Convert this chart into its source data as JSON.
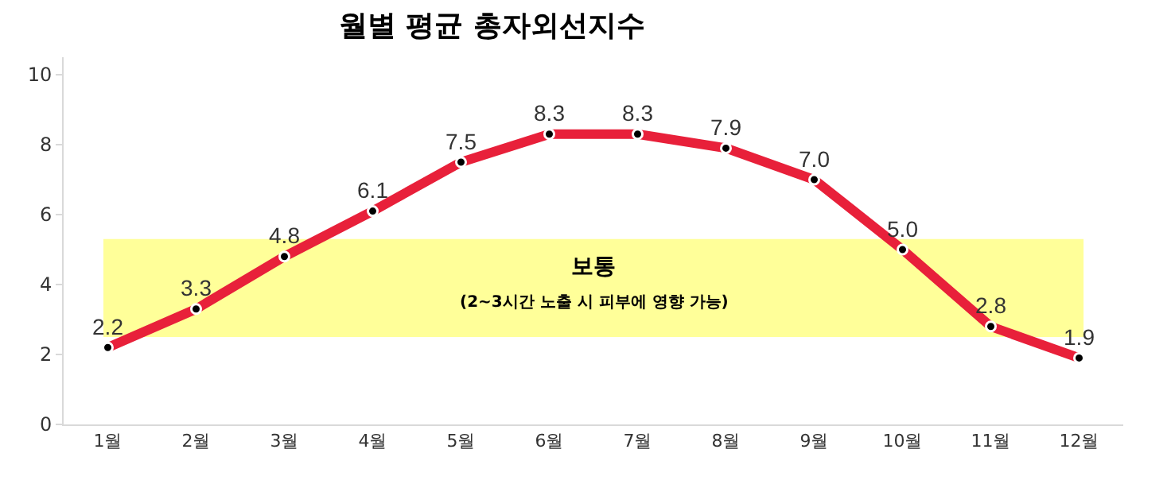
{
  "chart_data": {
    "type": "line",
    "title": "월별 평균 총자외선지수",
    "categories": [
      "1월",
      "2월",
      "3월",
      "4월",
      "5월",
      "6월",
      "7월",
      "8월",
      "9월",
      "10월",
      "11월",
      "12월"
    ],
    "series": [
      {
        "color": "#e8203a",
        "values": [
          2.2,
          3.3,
          4.8,
          6.1,
          7.5,
          8.3,
          8.3,
          7.9,
          7.0,
          5.0,
          2.8,
          1.9
        ]
      }
    ],
    "value_labels": [
      "2.2",
      "3.3",
      "4.8",
      "6.1",
      "7.5",
      "8.3",
      "8.3",
      "7.9",
      "7.0",
      "5.0",
      "2.8",
      "1.9"
    ],
    "ylim": [
      0,
      10.5
    ],
    "yticks": [
      0,
      2,
      4,
      6,
      8,
      10
    ],
    "grid": false,
    "marker": "circle",
    "line_style": "solid",
    "bands": [
      {
        "axis": "y",
        "from": 2.5,
        "to": 5.3,
        "label": "보통",
        "color": "#ffff99"
      }
    ],
    "annotations": [
      "(2~3시간 노출 시 피부에 영향 가능)"
    ]
  }
}
